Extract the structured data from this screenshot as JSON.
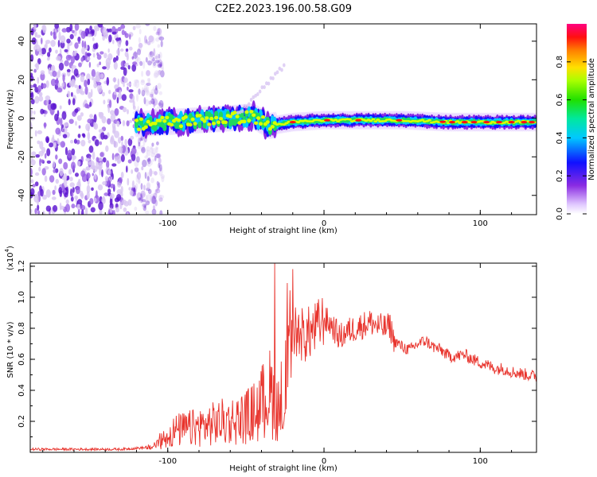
{
  "figure_title": "C2E2.2023.196.00.58.G09",
  "colors": {
    "snr_line": "#e8332c",
    "axis": "#000000",
    "scatter_low": "#d8c6f2",
    "scatter_mid": "#9a62e6",
    "scatter_high": "#5a12d0"
  },
  "chart_data": [
    {
      "type": "heatmap",
      "title": "",
      "xlabel": "Height of straight line (km)",
      "ylabel": "Frequency (Hz)",
      "xlim": [
        -188,
        136
      ],
      "ylim": [
        -50,
        49
      ],
      "xticks": [
        -100,
        0,
        100
      ],
      "xtick_labels": [
        "-100",
        "0",
        "100"
      ],
      "yticks": [
        -40,
        -20,
        0,
        20,
        40
      ],
      "ytick_labels": [
        "-40",
        "-20",
        "0",
        "20",
        "40"
      ],
      "grid": false,
      "colorbar": {
        "label": "Normalized spectral amplitude",
        "range": [
          0,
          1
        ],
        "ticks": [
          0.0,
          0.2,
          0.4,
          0.6,
          0.8
        ],
        "tick_labels": [
          "0.0",
          "0.2",
          "0.4",
          "0.6",
          "0.8"
        ],
        "colormap": "rainbow (white-violet-blue-cyan-green-yellow-red-magenta)"
      },
      "description_of_content": {
        "noise_region_x": [
          -188,
          -115
        ],
        "signal_ridge": {
          "x": [
            -120,
            -100,
            -80,
            -60,
            -45,
            -35,
            -20,
            0,
            20,
            50,
            80,
            100,
            136
          ],
          "frequency_hz": [
            -3,
            -2,
            -1,
            0,
            1,
            -4,
            -2,
            -1,
            -1,
            -1,
            -2,
            -2,
            -2
          ]
        }
      }
    },
    {
      "type": "line",
      "title": "",
      "xlabel": "Height of straight line (km)",
      "ylabel": "SNR (10 * v/v)",
      "y_multiplier_label": "(x10",
      "y_multiplier_exp": "4",
      "y_multiplier_close": ")",
      "xlim": [
        -188,
        136
      ],
      "ylim": [
        0,
        1.22
      ],
      "xticks": [
        -100,
        0,
        100
      ],
      "xtick_labels": [
        "-100",
        "0",
        "100"
      ],
      "yticks": [
        0.2,
        0.4,
        0.6,
        0.8,
        1.0,
        1.2
      ],
      "ytick_labels": [
        "0.2",
        "0.4",
        "0.6",
        "0.8",
        "1.0",
        "1.2"
      ],
      "grid": false,
      "series": [
        {
          "x": [
            -188,
            -160,
            -130,
            -115,
            -110,
            -103,
            -95,
            -85,
            -75,
            -65,
            -55,
            -48,
            -42,
            -38,
            -35,
            -30,
            -25,
            -22,
            -18,
            -12,
            -5,
            0,
            5,
            10,
            15,
            20,
            25,
            30,
            35,
            40,
            42,
            45,
            50,
            55,
            60,
            65,
            70,
            75,
            80,
            85,
            90,
            95,
            100,
            105,
            110,
            115,
            120,
            125,
            130,
            136
          ],
          "values": [
            0.02,
            0.02,
            0.02,
            0.03,
            0.05,
            0.12,
            0.2,
            0.22,
            0.25,
            0.28,
            0.3,
            0.34,
            0.4,
            0.5,
            0.55,
            0.45,
            0.6,
            0.7,
            0.78,
            0.75,
            0.8,
            0.86,
            0.82,
            0.74,
            0.78,
            0.8,
            0.82,
            0.84,
            0.81,
            0.8,
            0.82,
            0.72,
            0.68,
            0.66,
            0.7,
            0.72,
            0.68,
            0.66,
            0.62,
            0.62,
            0.63,
            0.6,
            0.58,
            0.56,
            0.54,
            0.54,
            0.52,
            0.51,
            0.5,
            0.49
          ]
        }
      ]
    }
  ]
}
